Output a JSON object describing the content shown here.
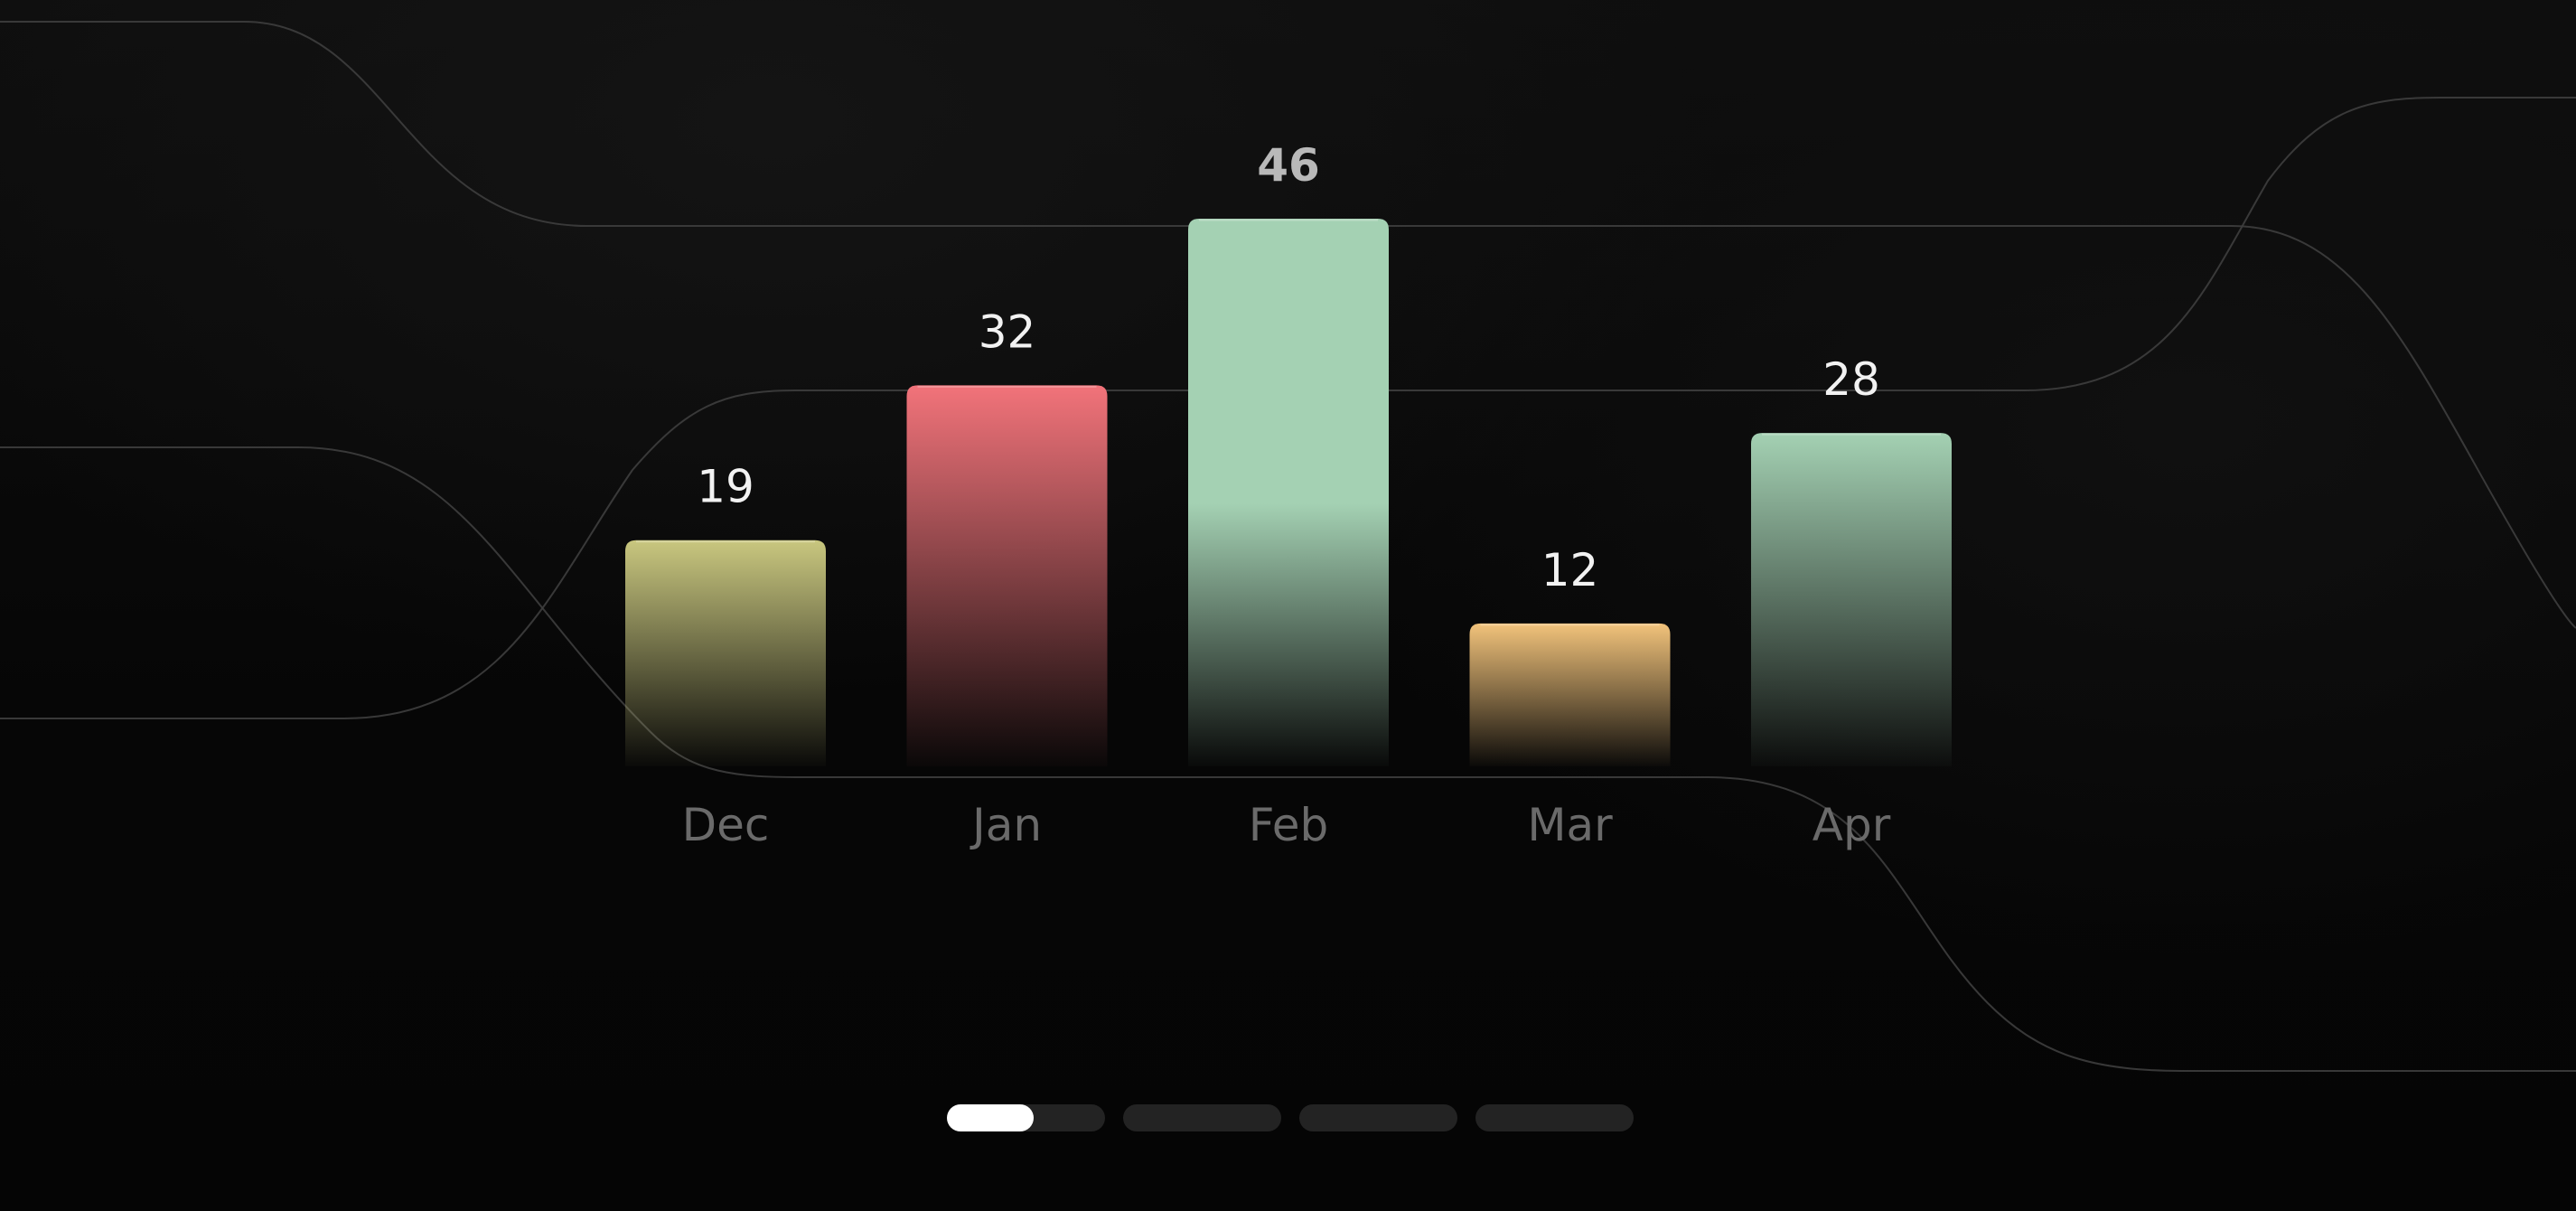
{
  "chart_data": {
    "type": "bar",
    "title": "",
    "xlabel": "",
    "ylabel": "",
    "ylim": [
      0,
      46
    ],
    "grid": false,
    "legend": "none",
    "categories": [
      "Dec",
      "Jan",
      "Feb",
      "Mar",
      "Apr"
    ],
    "values": [
      19,
      32,
      46,
      12,
      28
    ],
    "value_labels": [
      "19",
      "32",
      "46",
      "12",
      "28"
    ],
    "colors": [
      "#c9c77f",
      "#f2737a",
      "#a4d1b3",
      "#f2c37b",
      "#a4d1b3"
    ]
  },
  "pager": {
    "pages": 4,
    "active_index": 0,
    "active_progress": 0.55
  }
}
